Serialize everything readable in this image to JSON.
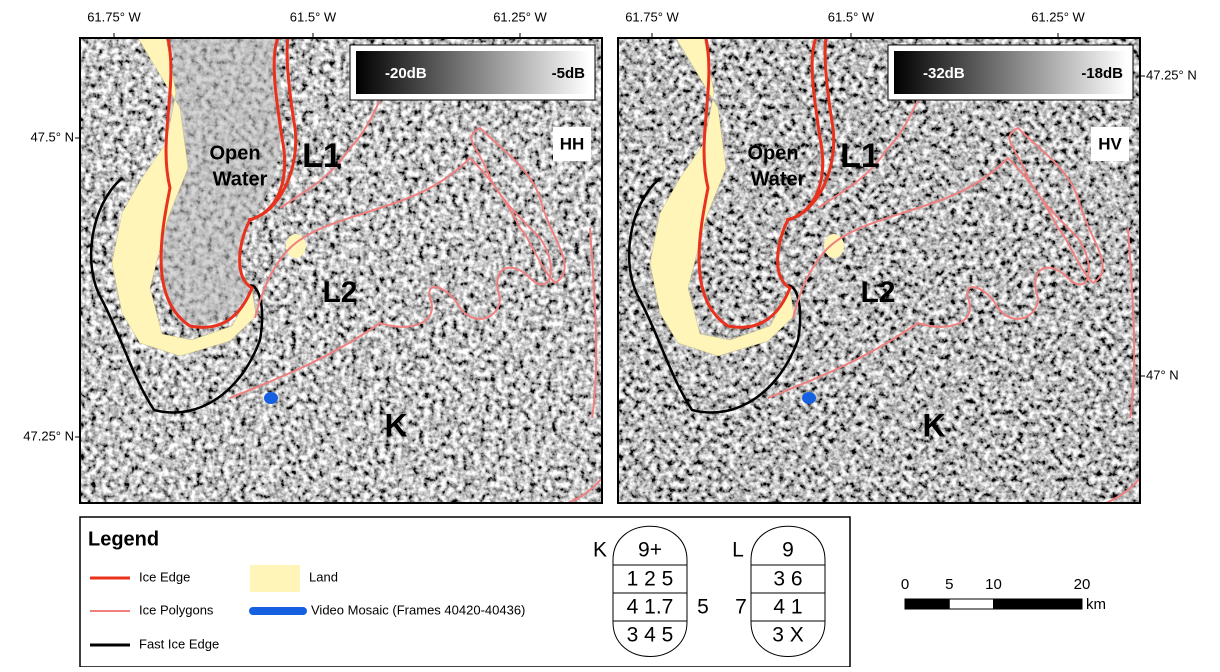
{
  "panels": [
    {
      "polarization": "HH",
      "colorbar": {
        "min_label": "-20dB",
        "max_label": "-5dB"
      },
      "top_labels": [
        "61.75° W",
        "61.5° W",
        "61.25° W"
      ],
      "side_labels": [
        {
          "text": "47.5° N",
          "side": "left"
        },
        {
          "text": "47.25° N",
          "side": "left"
        }
      ],
      "regions": {
        "open_water": [
          "Open",
          "Water"
        ],
        "l1": "L1",
        "l2": "L2",
        "k": "K"
      }
    },
    {
      "polarization": "HV",
      "colorbar": {
        "min_label": "-32dB",
        "max_label": "-18dB"
      },
      "top_labels": [
        "61.75° W",
        "61.5° W",
        "61.25° W"
      ],
      "side_labels": [
        {
          "text": "47.25° N",
          "side": "right"
        },
        {
          "text": "47° N",
          "side": "right"
        }
      ],
      "regions": {
        "open_water": [
          "Open",
          "Water"
        ],
        "l1": "L1",
        "l2": "L2",
        "k": "K"
      }
    }
  ],
  "legend": {
    "title": "Legend",
    "items": [
      "Ice Edge",
      "Ice Polygons",
      "Fast Ice Edge",
      "Land",
      "Video Mosaic (Frames 40420-40436)"
    ]
  },
  "egg_codes": [
    {
      "label": "K",
      "total": "9+",
      "concentrations": "1 2 5",
      "stages": "4 1.7",
      "forms": "3 4 5",
      "side": "5"
    },
    {
      "label": "L",
      "total": "9",
      "concentrations": "3 6",
      "stages": "4 1",
      "forms": "3 X",
      "side": "7"
    }
  ],
  "scale_bar": {
    "ticks": [
      0,
      5,
      10,
      20
    ],
    "unit": "km"
  }
}
